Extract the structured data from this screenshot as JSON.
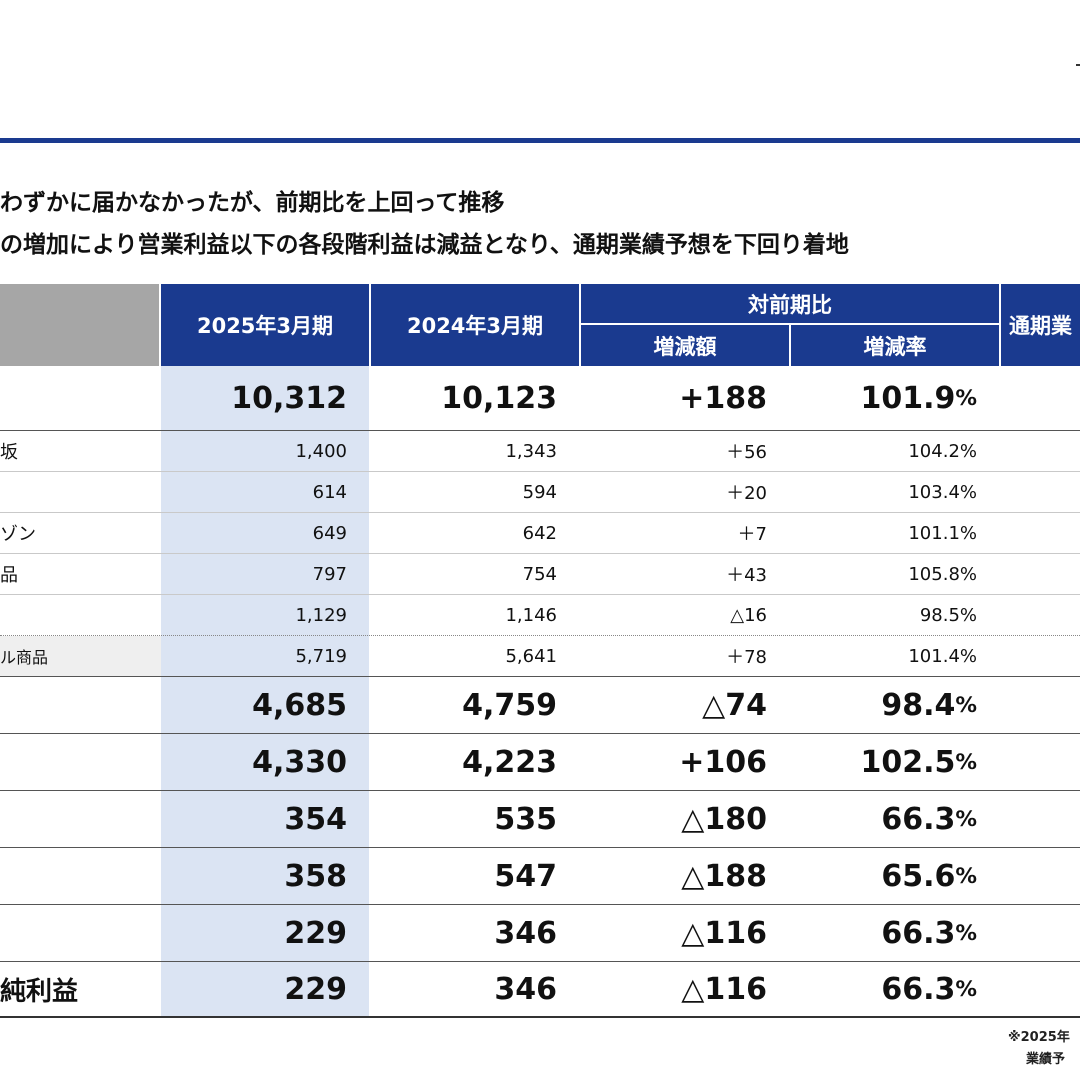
{
  "headlines": [
    "わずかに届かなかったが、前期比を上回って推移",
    "の増加により営業利益以下の各段階利益は減益となり、通期業績予想を下回り着地"
  ],
  "table": {
    "headers": {
      "current": "2025年3月期",
      "previous": "2024年3月期",
      "comparison_group": "対前期比",
      "change_amount": "増減額",
      "change_rate": "増減率",
      "forecast_partial": "通期業"
    },
    "rows": [
      {
        "label": "",
        "current": "10,312",
        "previous": "10,123",
        "change": "+188",
        "rate": "101.9",
        "unit": "%"
      },
      {
        "label": "坂",
        "current": "1,400",
        "previous": "1,343",
        "change": "＋56",
        "rate": "104.2",
        "unit": "%"
      },
      {
        "label": "",
        "current": "614",
        "previous": "594",
        "change": "＋20",
        "rate": "103.4",
        "unit": "%"
      },
      {
        "label": "ゾン",
        "current": "649",
        "previous": "642",
        "change": "＋7",
        "rate": "101.1",
        "unit": "%"
      },
      {
        "label": "品",
        "current": "797",
        "previous": "754",
        "change": "＋43",
        "rate": "105.8",
        "unit": "%"
      },
      {
        "label": "",
        "current": "1,129",
        "previous": "1,146",
        "change": "△16",
        "rate": "98.5",
        "unit": "%"
      },
      {
        "label": "ル商品",
        "current": "5,719",
        "previous": "5,641",
        "change": "＋78",
        "rate": "101.4",
        "unit": "%"
      },
      {
        "label": "",
        "current": "4,685",
        "previous": "4,759",
        "change": "△74",
        "rate": "98.4",
        "unit": "%"
      },
      {
        "label": "",
        "current": "4,330",
        "previous": "4,223",
        "change": "+106",
        "rate": "102.5",
        "unit": "%"
      },
      {
        "label": "",
        "current": "354",
        "previous": "535",
        "change": "△180",
        "rate": "66.3",
        "unit": "%"
      },
      {
        "label": "",
        "current": "358",
        "previous": "547",
        "change": "△188",
        "rate": "65.6",
        "unit": "%"
      },
      {
        "label": "",
        "current": "229",
        "previous": "346",
        "change": "△116",
        "rate": "66.3",
        "unit": "%"
      },
      {
        "label": "純利益",
        "current": "229",
        "previous": "346",
        "change": "△116",
        "rate": "66.3",
        "unit": "%"
      }
    ]
  },
  "footnote": {
    "line1": "※2025年",
    "line2": "業績予"
  }
}
